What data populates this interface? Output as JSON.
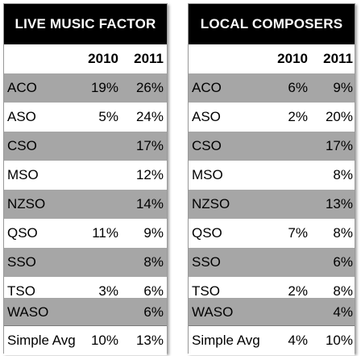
{
  "tables": [
    {
      "title": "LIVE MUSIC FACTOR",
      "col1_header": "2010",
      "col2_header": "2011",
      "rows": [
        {
          "label": "ACO",
          "v2010": "19%",
          "v2011": "26%"
        },
        {
          "label": "ASO",
          "v2010": "5%",
          "v2011": "24%"
        },
        {
          "label": "CSO",
          "v2010": "",
          "v2011": "17%"
        },
        {
          "label": "MSO",
          "v2010": "",
          "v2011": "12%"
        },
        {
          "label": "NZSO",
          "v2010": "",
          "v2011": "14%"
        },
        {
          "label": "QSO",
          "v2010": "11%",
          "v2011": "9%"
        },
        {
          "label": "SSO",
          "v2010": "",
          "v2011": "8%"
        },
        {
          "label": "TSO",
          "v2010": "3%",
          "v2011": "6%"
        },
        {
          "label": "WASO",
          "v2010": "",
          "v2011": "6%"
        }
      ],
      "avg": {
        "label": "Simple Avg",
        "v2010": "10%",
        "v2011": "13%"
      }
    },
    {
      "title": "LOCAL COMPOSERS",
      "col1_header": "2010",
      "col2_header": "2011",
      "rows": [
        {
          "label": "ACO",
          "v2010": "6%",
          "v2011": "9%"
        },
        {
          "label": "ASO",
          "v2010": "2%",
          "v2011": "20%"
        },
        {
          "label": "CSO",
          "v2010": "",
          "v2011": "17%"
        },
        {
          "label": "MSO",
          "v2010": "",
          "v2011": "8%"
        },
        {
          "label": "NZSO",
          "v2010": "",
          "v2011": "13%"
        },
        {
          "label": "QSO",
          "v2010": "7%",
          "v2011": "8%"
        },
        {
          "label": "SSO",
          "v2010": "",
          "v2011": "6%"
        },
        {
          "label": "TSO",
          "v2010": "2%",
          "v2011": "8%"
        },
        {
          "label": "WASO",
          "v2010": "",
          "v2011": "4%"
        }
      ],
      "avg": {
        "label": "Simple Avg",
        "v2010": "4%",
        "v2011": "10%"
      }
    }
  ],
  "colors": {
    "title_bg": "#000000",
    "title_text": "#ffffff",
    "shaded_row": "#a6a6a6"
  }
}
